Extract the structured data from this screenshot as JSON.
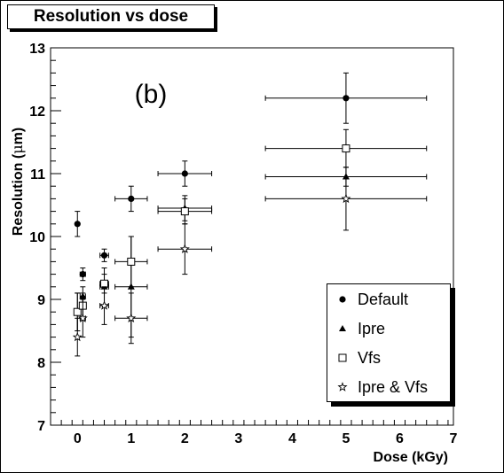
{
  "header": {
    "title": "Resolution vs dose"
  },
  "chart_data": {
    "type": "scatter",
    "title": "Resolution vs dose",
    "panel_label": "(b)",
    "xlabel": "Dose (kGy)",
    "ylabel_prefix": "Resolution (",
    "ylabel_greek": "μ",
    "ylabel_suffix": "m)",
    "xlim": [
      -0.5,
      7
    ],
    "ylim": [
      7,
      13
    ],
    "xticks": [
      0,
      1,
      2,
      3,
      4,
      5,
      6,
      7
    ],
    "yticks": [
      7,
      8,
      9,
      10,
      11,
      12,
      13
    ],
    "legend_position": "bottom-right",
    "series": [
      {
        "name": "Default",
        "marker": "circle",
        "points": [
          {
            "x": 0.0,
            "y": 10.2,
            "xerr": 0.0,
            "yerr": 0.2
          },
          {
            "x": 0.1,
            "y": 9.4,
            "xerr": 0.05,
            "yerr": 0.1
          },
          {
            "x": 0.5,
            "y": 9.7,
            "xerr": 0.08,
            "yerr": 0.1
          },
          {
            "x": 1.0,
            "y": 10.6,
            "xerr": 0.3,
            "yerr": 0.2
          },
          {
            "x": 2.0,
            "y": 11.0,
            "xerr": 0.5,
            "yerr": 0.2
          },
          {
            "x": 5.0,
            "y": 12.2,
            "xerr": 1.5,
            "yerr": 0.4
          }
        ]
      },
      {
        "name": "Ipre",
        "marker": "triangle",
        "points": [
          {
            "x": 0.0,
            "y": 8.8,
            "xerr": 0.0,
            "yerr": 0.3
          },
          {
            "x": 0.1,
            "y": 9.05,
            "xerr": 0.05,
            "yerr": 0.15
          },
          {
            "x": 0.5,
            "y": 9.2,
            "xerr": 0.08,
            "yerr": 0.3
          },
          {
            "x": 1.0,
            "y": 9.2,
            "xerr": 0.3,
            "yerr": 0.8
          },
          {
            "x": 2.0,
            "y": 10.45,
            "xerr": 0.5,
            "yerr": 0.2
          },
          {
            "x": 5.0,
            "y": 10.95,
            "xerr": 1.5,
            "yerr": 0.15
          }
        ]
      },
      {
        "name": "Vfs",
        "marker": "open-square",
        "points": [
          {
            "x": 0.0,
            "y": 8.8,
            "xerr": 0.0,
            "yerr": 0.3
          },
          {
            "x": 0.1,
            "y": 8.9,
            "xerr": 0.05,
            "yerr": 0.2
          },
          {
            "x": 0.5,
            "y": 9.25,
            "xerr": 0.08,
            "yerr": 0.15
          },
          {
            "x": 1.0,
            "y": 9.6,
            "xerr": 0.3,
            "yerr": 0.4
          },
          {
            "x": 2.0,
            "y": 10.4,
            "xerr": 0.5,
            "yerr": 0.2
          },
          {
            "x": 5.0,
            "y": 11.4,
            "xerr": 1.5,
            "yerr": 0.3
          }
        ]
      },
      {
        "name": "Ipre & Vfs",
        "marker": "open-star",
        "points": [
          {
            "x": 0.0,
            "y": 8.4,
            "xerr": 0.0,
            "yerr": 0.3
          },
          {
            "x": 0.1,
            "y": 8.7,
            "xerr": 0.05,
            "yerr": 0.3
          },
          {
            "x": 0.5,
            "y": 8.9,
            "xerr": 0.08,
            "yerr": 0.3
          },
          {
            "x": 1.0,
            "y": 8.7,
            "xerr": 0.3,
            "yerr": 0.4
          },
          {
            "x": 2.0,
            "y": 9.8,
            "xerr": 0.5,
            "yerr": 0.4
          },
          {
            "x": 5.0,
            "y": 10.6,
            "xerr": 1.5,
            "yerr": 0.5
          }
        ]
      }
    ]
  }
}
